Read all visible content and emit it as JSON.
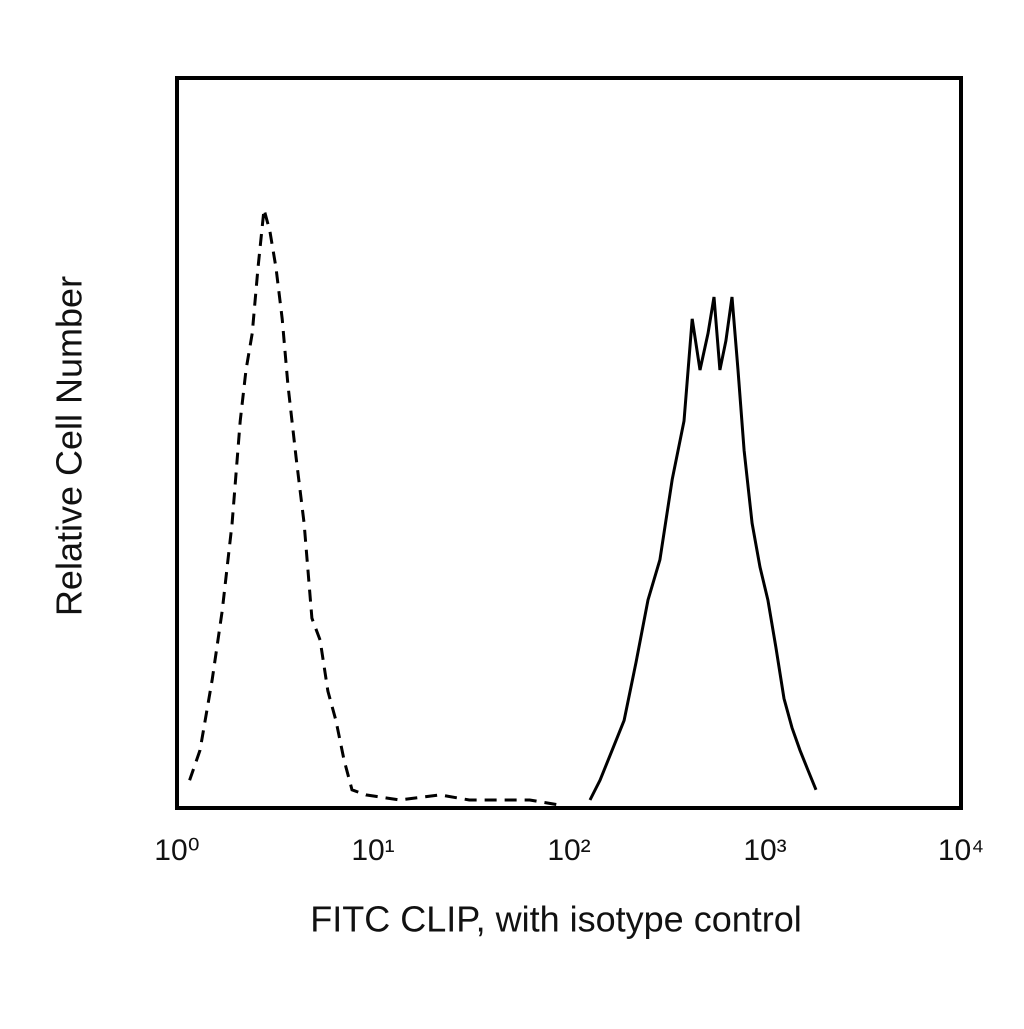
{
  "chart_data": {
    "type": "line",
    "xlabel": "FITC CLIP, with isotype control",
    "ylabel": "Relative Cell Number",
    "xscale": "log",
    "xlim": [
      1,
      10000
    ],
    "xticks": [
      {
        "value": 1,
        "label": "10⁰"
      },
      {
        "value": 10,
        "label": "10¹"
      },
      {
        "value": 100,
        "label": "10²"
      },
      {
        "value": 1000,
        "label": "10³"
      },
      {
        "value": 10000,
        "label": "10⁴"
      }
    ],
    "ylim": [
      0,
      100
    ],
    "grid": false,
    "series": [
      {
        "color": "#000000",
        "dashed": true,
        "x": [
          1.16,
          1.31,
          1.51,
          1.7,
          1.91,
          2.1,
          2.25,
          2.42,
          2.59,
          2.78,
          2.98,
          3.2,
          3.44,
          3.68,
          4.05,
          4.45,
          4.88,
          5.37,
          5.89,
          6.47,
          7.11,
          7.81,
          9.2,
          13.7,
          22,
          31,
          63,
          90
        ],
        "values": [
          3.8,
          7.9,
          17.5,
          27,
          39,
          53,
          60,
          65,
          74,
          82,
          79,
          74,
          67,
          58,
          48,
          39,
          26,
          23,
          16,
          12,
          6.6,
          2.5,
          1.8,
          1.1,
          1.8,
          1.1,
          1.1,
          0.4
        ]
      },
      {
        "color": "#000000",
        "dashed": false,
        "x": [
          128,
          144,
          166,
          191,
          220,
          253,
          291,
          336,
          386,
          425,
          466,
          512,
          549,
          589,
          632,
          679,
          728,
          782,
          859,
          943,
          1035,
          1137,
          1250,
          1373,
          1509,
          1656,
          1820
        ],
        "values": [
          1.1,
          3.8,
          7.9,
          12,
          20,
          28.5,
          34,
          45,
          53,
          67,
          60,
          65,
          70,
          60,
          64,
          70,
          60,
          49,
          39,
          33,
          28.5,
          22,
          15,
          11,
          7.9,
          5.2,
          2.5
        ]
      }
    ]
  }
}
